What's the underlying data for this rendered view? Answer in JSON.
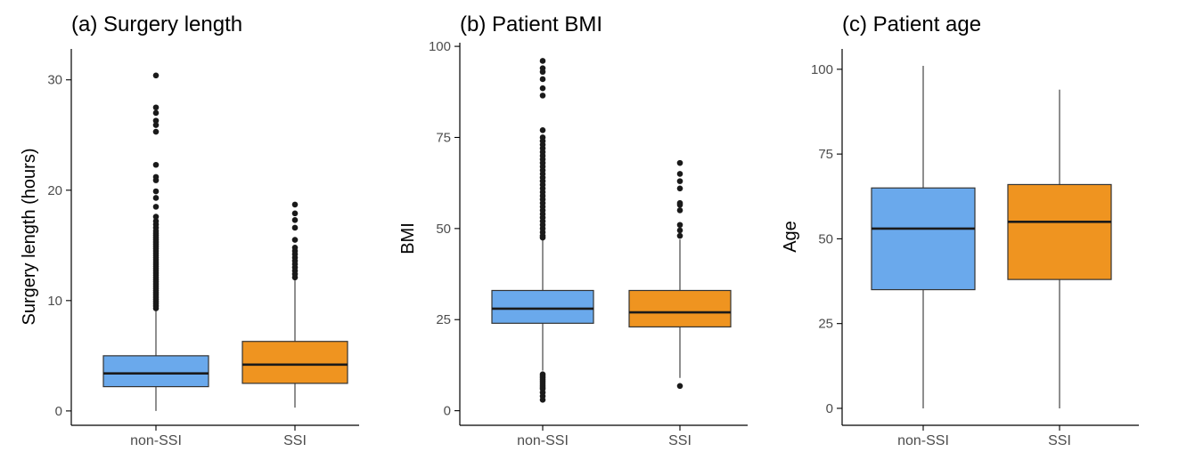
{
  "colors": {
    "non_ssi": "#6aa9ec",
    "ssi": "#ef9420",
    "outline": "#333333",
    "axis": "#000000",
    "tick_text": "#4d4d4d"
  },
  "chart_data": [
    {
      "type": "box",
      "panel": "a",
      "title": "(a) Surgery length",
      "ylabel": "Surgery length (hours)",
      "xlabel": "",
      "ylim": [
        -1.3,
        32.8
      ],
      "yticks": [
        0,
        10,
        20,
        30
      ],
      "categories": [
        "non-SSI",
        "SSI"
      ],
      "boxes": [
        {
          "category": "non-SSI",
          "whisker_low": 0,
          "q1": 2.2,
          "median": 3.4,
          "q3": 5.0,
          "whisker_high": 9.2,
          "outliers": [
            9.3,
            9.5,
            9.7,
            9.9,
            10.1,
            10.3,
            10.5,
            10.7,
            10.9,
            11.1,
            11.3,
            11.5,
            11.7,
            11.9,
            12.1,
            12.3,
            12.5,
            12.7,
            12.9,
            13.1,
            13.3,
            13.5,
            13.7,
            13.9,
            14.1,
            14.3,
            14.5,
            14.7,
            14.9,
            15.1,
            15.3,
            15.5,
            15.7,
            15.9,
            16.1,
            16.3,
            16.6,
            16.9,
            17.2,
            17.6,
            18.5,
            19.3,
            19.9,
            20.9,
            21.2,
            22.3,
            25.3,
            25.9,
            26.3,
            27.0,
            27.5,
            30.4
          ]
        },
        {
          "category": "SSI",
          "whisker_low": 0.3,
          "q1": 2.5,
          "median": 4.2,
          "q3": 6.3,
          "whisker_high": 11.9,
          "outliers": [
            12.1,
            12.4,
            12.7,
            13.0,
            13.3,
            13.6,
            13.9,
            14.2,
            14.5,
            14.8,
            15.5,
            16.6,
            17.3,
            17.9,
            18.7
          ]
        }
      ]
    },
    {
      "type": "box",
      "panel": "b",
      "title": "(b) Patient BMI",
      "ylabel": "BMI",
      "xlabel": "",
      "ylim": [
        -4,
        101
      ],
      "yticks": [
        0,
        25,
        50,
        75,
        100
      ],
      "categories": [
        "non-SSI",
        "SSI"
      ],
      "boxes": [
        {
          "category": "non-SSI",
          "whisker_low": 11,
          "q1": 24,
          "median": 28,
          "q3": 33,
          "whisker_high": 47,
          "outliers": [
            3,
            4,
            5,
            6,
            6.5,
            7,
            7.5,
            8,
            8.5,
            9,
            9.5,
            10,
            47.5,
            48,
            49,
            50,
            51,
            52,
            53,
            54,
            55,
            56,
            57,
            58,
            59,
            60,
            61,
            62,
            63,
            64,
            65,
            66,
            67,
            68,
            69,
            70,
            71,
            72,
            73,
            74,
            75,
            77,
            86.5,
            88.5,
            91,
            93,
            94,
            96
          ]
        },
        {
          "category": "SSI",
          "whisker_low": 9,
          "q1": 23,
          "median": 27,
          "q3": 33,
          "whisker_high": 47,
          "outliers": [
            6.8,
            48,
            49.5,
            51,
            55,
            56.5,
            57,
            61,
            63,
            65,
            68
          ]
        }
      ]
    },
    {
      "type": "box",
      "panel": "c",
      "title": "(c) Patient age",
      "ylabel": "Age",
      "xlabel": "",
      "ylim": [
        -5,
        106
      ],
      "yticks": [
        0,
        25,
        50,
        75,
        100
      ],
      "categories": [
        "non-SSI",
        "SSI"
      ],
      "boxes": [
        {
          "category": "non-SSI",
          "whisker_low": 0,
          "q1": 35,
          "median": 53,
          "q3": 65,
          "whisker_high": 101,
          "outliers": []
        },
        {
          "category": "SSI",
          "whisker_low": 0,
          "q1": 38,
          "median": 55,
          "q3": 66,
          "whisker_high": 94,
          "outliers": []
        }
      ]
    }
  ]
}
